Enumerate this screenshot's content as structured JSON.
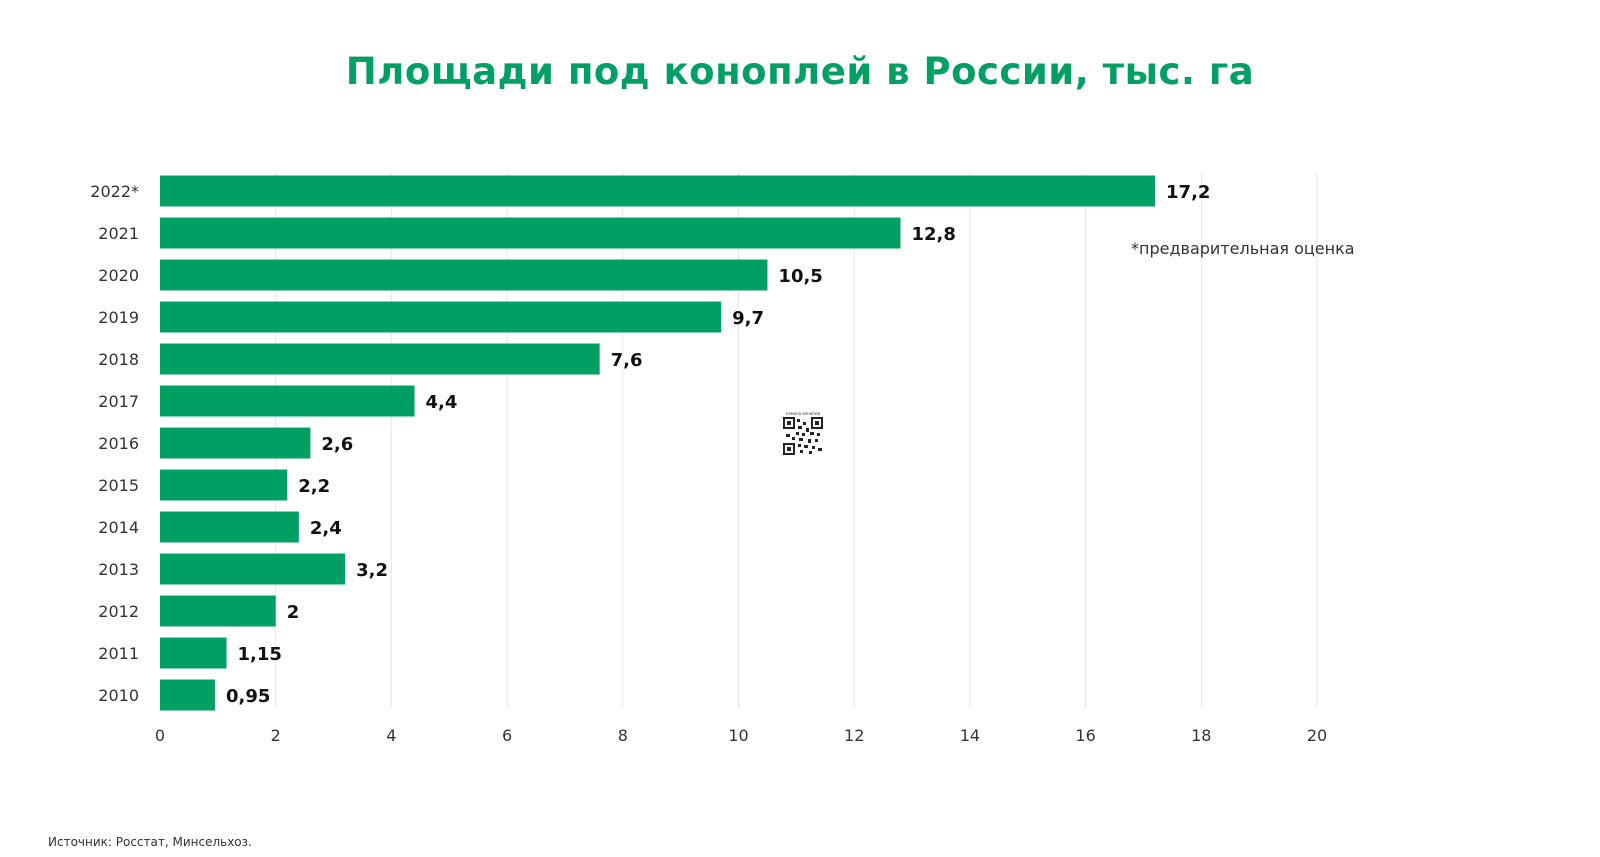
{
  "chart_data": {
    "type": "bar",
    "orientation": "horizontal",
    "title": "Площади под коноплей в России, тыс. га",
    "categories": [
      "2022*",
      "2021",
      "2020",
      "2019",
      "2018",
      "2017",
      "2016",
      "2015",
      "2014",
      "2013",
      "2012",
      "2011",
      "2010"
    ],
    "values": [
      17.2,
      12.8,
      10.5,
      9.7,
      7.6,
      4.4,
      2.6,
      2.2,
      2.4,
      3.2,
      2,
      1.15,
      0.95
    ],
    "value_labels": [
      "17,2",
      "12,8",
      "10,5",
      "9,7",
      "7,6",
      "4,4",
      "2,6",
      "2,2",
      "2,4",
      "3,2",
      "2",
      "1,15",
      "0,95"
    ],
    "xticks": [
      0,
      2,
      4,
      6,
      8,
      10,
      12,
      14,
      16,
      18,
      20
    ],
    "xlim": [
      0,
      20
    ],
    "grid": "vertical",
    "bar_color": "#00a065",
    "annotation": "*предварительная оценка"
  },
  "qr_caption": "семена конопли",
  "source": "Источник: Росстат, Минсельхоз."
}
